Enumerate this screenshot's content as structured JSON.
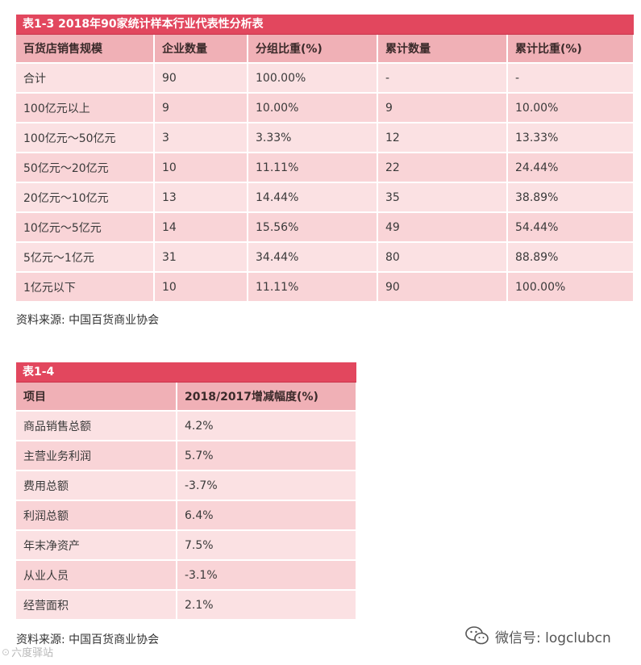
{
  "table1": {
    "title": "表1-3 2018年90家统计样本行业代表性分析表",
    "headers": [
      "百货店销售规模",
      "企业数量",
      "分组比重(%)",
      "累计数量",
      "累计比重(%)"
    ],
    "rows": [
      [
        "合计",
        "90",
        "100.00%",
        "-",
        "-"
      ],
      [
        "100亿元以上",
        "9",
        "10.00%",
        "9",
        "10.00%"
      ],
      [
        "100亿元～50亿元",
        "3",
        "3.33%",
        "12",
        "13.33%"
      ],
      [
        "50亿元～20亿元",
        "10",
        "11.11%",
        "22",
        "24.44%"
      ],
      [
        "20亿元～10亿元",
        "13",
        "14.44%",
        "35",
        "38.89%"
      ],
      [
        "10亿元～5亿元",
        "14",
        "15.56%",
        "49",
        "54.44%"
      ],
      [
        "5亿元～1亿元",
        "31",
        "34.44%",
        "80",
        "88.89%"
      ],
      [
        "1亿元以下",
        "10",
        "11.11%",
        "90",
        "100.00%"
      ]
    ],
    "source": "资料来源: 中国百货商业协会"
  },
  "table2": {
    "title": "表1-4",
    "headers": [
      "项目",
      "2018/2017增减幅度(%)"
    ],
    "rows": [
      [
        "商品销售总额",
        "4.2%"
      ],
      [
        "主营业务利润",
        "5.7%"
      ],
      [
        "费用总额",
        "-3.7%"
      ],
      [
        "利润总额",
        "6.4%"
      ],
      [
        "年末净资产",
        "7.5%"
      ],
      [
        "从业人员",
        "-3.1%"
      ],
      [
        "经营面积",
        "2.1%"
      ]
    ],
    "source": "资料来源: 中国百货商业协会"
  },
  "watermark": {
    "left_text": "六度驿站",
    "right_text": "微信号: logclubcn",
    "icon": "wechat-icon"
  },
  "colors": {
    "title_bar": "#e2475e",
    "header_bg": "#f0b0b6",
    "row_odd": "#fbe1e3",
    "row_even": "#f9d4d7"
  }
}
